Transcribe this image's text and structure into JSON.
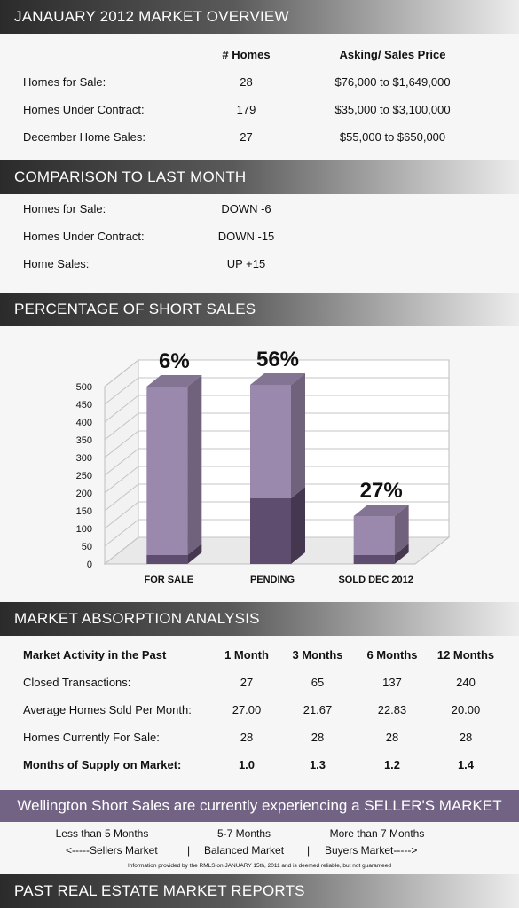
{
  "overview": {
    "title": "JANAUARY 2012 MARKET OVERVIEW",
    "col_homes": "# Homes",
    "col_price": "Asking/ Sales Price",
    "rows": [
      {
        "label": "Homes for Sale:",
        "homes": "28",
        "price": "$76,000 to $1,649,000"
      },
      {
        "label": "Homes Under Contract:",
        "homes": "179",
        "price": "$35,000 to $3,100,000"
      },
      {
        "label": "December Home Sales:",
        "homes": "27",
        "price": "$55,000 to $650,000"
      }
    ]
  },
  "comparison": {
    "title": "COMPARISON TO LAST MONTH",
    "rows": [
      {
        "label": "Homes for Sale:",
        "value": "DOWN -6"
      },
      {
        "label": "Homes Under Contract:",
        "value": "DOWN -15"
      },
      {
        "label": "Home Sales:",
        "value": "UP +15"
      }
    ]
  },
  "short_sales": {
    "title": "PERCENTAGE OF SHORT SALES"
  },
  "chart_data": {
    "type": "bar",
    "categories": [
      "FOR SALE",
      "PENDING",
      "SOLD DEC 2012"
    ],
    "series": [
      {
        "values": [
          25,
          185,
          25
        ]
      },
      {
        "values": [
          475,
          320,
          110
        ]
      }
    ],
    "data_labels": [
      "6%",
      "56%",
      "27%"
    ],
    "ylim": [
      0,
      500
    ],
    "yticks": [
      "0",
      "50",
      "100",
      "150",
      "200",
      "250",
      "300",
      "350",
      "400",
      "450",
      "500"
    ],
    "grid": true,
    "colors": {
      "bottom": "#5e4d6e",
      "top": "#9b88ad"
    }
  },
  "absorption": {
    "title": "MARKET ABSORPTION ANALYSIS",
    "header": [
      "Market Activity in the Past",
      "1 Month",
      "3 Months",
      "6 Months",
      "12 Months"
    ],
    "rows": [
      [
        "Closed Transactions:",
        "27",
        "65",
        "137",
        "240"
      ],
      [
        "Average Homes Sold Per Month:",
        "27.00",
        "21.67",
        "22.83",
        "20.00"
      ],
      [
        "Homes Currently For Sale:",
        "28",
        "28",
        "28",
        "28"
      ],
      [
        "Months of Supply on Market:",
        "1.0",
        "1.3",
        "1.2",
        "1.4"
      ]
    ]
  },
  "banner": "Wellington Short Sales are currently experiencing a SELLER'S MARKET",
  "legend": {
    "row1": [
      "Less than 5 Months",
      "5-7 Months",
      "More than 7 Months"
    ],
    "row2": [
      "<-----Sellers Market",
      "|",
      "Balanced Market",
      "|",
      "Buyers Market----->"
    ],
    "disclaimer": "Information provided by the RMLS on JANUARY 15th, 2011 and is deemed reliable, but not guaranteed"
  },
  "past_reports": {
    "title": "PAST REAL ESTATE MARKET REPORTS"
  }
}
